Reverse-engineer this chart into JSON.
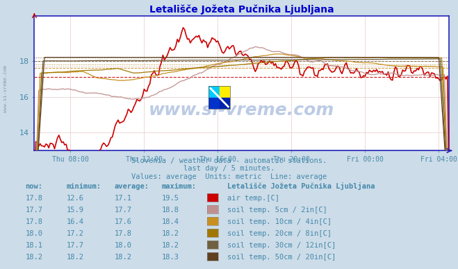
{
  "title": "Letališče Jožeta Pučnika Ljubljana",
  "title_color": "#0000cc",
  "bg_color": "#ccdce8",
  "plot_bg_color": "#ffffff",
  "grid_color": "#dddddd",
  "axis_color": "#2222bb",
  "text_color": "#4488aa",
  "subtitle1": "Slovenia / weather data - automatic stations.",
  "subtitle2": "last day / 5 minutes.",
  "subtitle3": "Values: average  Units: metric  Line: average",
  "watermark": "www.si-vreme.com",
  "xticklabels": [
    "Thu 08:00",
    "Thu 12:00",
    "Thu 16:00",
    "Thu 20:00",
    "Fri 00:00",
    "Fri 04:00"
  ],
  "yticks": [
    14,
    16,
    18
  ],
  "ymin": 13.0,
  "ymax": 20.5,
  "n_points": 288,
  "series": [
    {
      "label": "air temp.[C]",
      "color": "#cc0000",
      "now": 17.8,
      "min": 12.6,
      "avg": 17.1,
      "max": 19.5
    },
    {
      "label": "soil temp. 5cm / 2in[C]",
      "color": "#c09090",
      "now": 17.7,
      "min": 15.9,
      "avg": 17.7,
      "max": 18.8
    },
    {
      "label": "soil temp. 10cm / 4in[C]",
      "color": "#c89020",
      "now": 17.8,
      "min": 16.4,
      "avg": 17.6,
      "max": 18.4
    },
    {
      "label": "soil temp. 20cm / 8in[C]",
      "color": "#a07800",
      "now": 18.0,
      "min": 17.2,
      "avg": 17.8,
      "max": 18.2
    },
    {
      "label": "soil temp. 30cm / 12in[C]",
      "color": "#706040",
      "now": 18.1,
      "min": 17.7,
      "avg": 18.0,
      "max": 18.2
    },
    {
      "label": "soil temp. 50cm / 20in[C]",
      "color": "#604020",
      "now": 18.2,
      "min": 18.2,
      "avg": 18.2,
      "max": 18.3
    }
  ],
  "legend_title": "Letališče Jožeta Pučnika Ljubljana",
  "table_headers": [
    "now:",
    "minimum:",
    "average:",
    "maximum:"
  ]
}
